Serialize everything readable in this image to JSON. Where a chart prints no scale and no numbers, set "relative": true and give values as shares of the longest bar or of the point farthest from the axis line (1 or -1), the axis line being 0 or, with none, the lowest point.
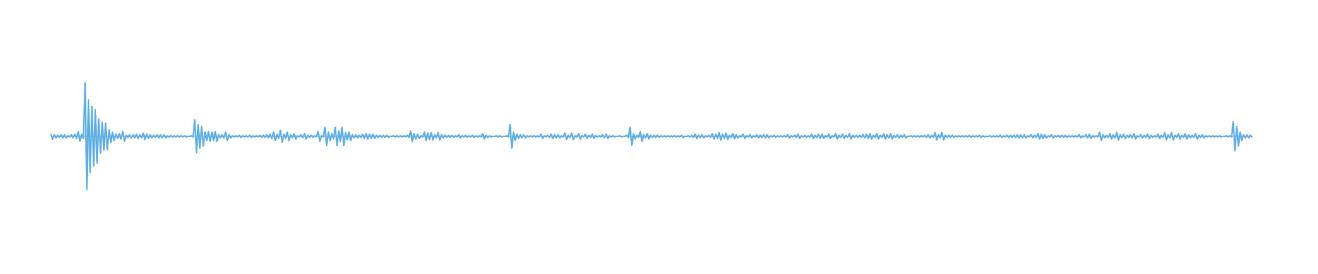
{
  "chart_data": {
    "type": "line",
    "relative": true,
    "categories": [
      null,
      null,
      null,
      null,
      null,
      null,
      null,
      null,
      null,
      null,
      null,
      null,
      null,
      null,
      null,
      null,
      null,
      null,
      null,
      null,
      null,
      null,
      null,
      null,
      null,
      null,
      null,
      null,
      null,
      null,
      null,
      null,
      null,
      null,
      null,
      null,
      null,
      null,
      null,
      null,
      null,
      null,
      null,
      null,
      null,
      null,
      null,
      null,
      null,
      null,
      null,
      null,
      null,
      null,
      null,
      null,
      null,
      null,
      null,
      null,
      null,
      null,
      null,
      null,
      null,
      null,
      null,
      null,
      null,
      null,
      null,
      null,
      null,
      null,
      null,
      null,
      null,
      null,
      null,
      null,
      null,
      null,
      null,
      null,
      null,
      null,
      null,
      null,
      null,
      null,
      null,
      null,
      null,
      null,
      null,
      null,
      null,
      null,
      null,
      null,
      null,
      null,
      null,
      null,
      null,
      null,
      null,
      null,
      null,
      null,
      null,
      null,
      null,
      null,
      null,
      null,
      null,
      null,
      null,
      null,
      null,
      null,
      null,
      null,
      null,
      null,
      null,
      null,
      null,
      null,
      null,
      null,
      null,
      null,
      null,
      null,
      null,
      null,
      null,
      null,
      null,
      null,
      null,
      null,
      null,
      null,
      null,
      null,
      null,
      null,
      null,
      null,
      null,
      null,
      null,
      null,
      null,
      null,
      null,
      null,
      null,
      null,
      null,
      null,
      null,
      null,
      null,
      null,
      null,
      null,
      null,
      null,
      null,
      null,
      null,
      null,
      null,
      null,
      null,
      null,
      null,
      null,
      null,
      null,
      null,
      null,
      null,
      null,
      null,
      null,
      null,
      null,
      null,
      null,
      null,
      null,
      null,
      null,
      null,
      null,
      null,
      null,
      null,
      null,
      null,
      null,
      null,
      null,
      null,
      null,
      null,
      null,
      null,
      null,
      null,
      null,
      null,
      null,
      null,
      null,
      null,
      null,
      null,
      null,
      null,
      null,
      null,
      null,
      null,
      null,
      null,
      null,
      null,
      null,
      null,
      null,
      null,
      null,
      null,
      null,
      null,
      null,
      null,
      null,
      null,
      null,
      null,
      null,
      null,
      null,
      null,
      null,
      null,
      null,
      null,
      null,
      null,
      null,
      null,
      null,
      null,
      null,
      null,
      null,
      null,
      null,
      null,
      null,
      null,
      null,
      null,
      null,
      null,
      null,
      null,
      null,
      null,
      null,
      null,
      null,
      null,
      null,
      null,
      null,
      null,
      null,
      null,
      null,
      null,
      null,
      null,
      null,
      null,
      null,
      null,
      null,
      null,
      null,
      null,
      null,
      null,
      null,
      null,
      null,
      null,
      null,
      null,
      null,
      null,
      null,
      null,
      null,
      null,
      null,
      null,
      null,
      null,
      null,
      null,
      null,
      null,
      null,
      null,
      null,
      null,
      null,
      null,
      null,
      null,
      null,
      null,
      null,
      null,
      null,
      null,
      null,
      null,
      null,
      null,
      null,
      null,
      null,
      null,
      null,
      null,
      null,
      null,
      null,
      null,
      null,
      null,
      null,
      null,
      null,
      null,
      null,
      null,
      null,
      null,
      null,
      null,
      null,
      null,
      null,
      null,
      null,
      null,
      null,
      null,
      null,
      null,
      null,
      null,
      null,
      null,
      null,
      null,
      null,
      null,
      null,
      null,
      null,
      null,
      null,
      null,
      null,
      null,
      null,
      null,
      null,
      null,
      null,
      null,
      null,
      null,
      null,
      null,
      null,
      null,
      null,
      null,
      null,
      null,
      null,
      null,
      null,
      null,
      null,
      null,
      null,
      null,
      null,
      null,
      null,
      null,
      null,
      null,
      null,
      null,
      null,
      null,
      null,
      null,
      null,
      null,
      null,
      null,
      null,
      null,
      null,
      null,
      null,
      null,
      null,
      null,
      null,
      null,
      null,
      null,
      null,
      null,
      null,
      null,
      null,
      null,
      null,
      null,
      null,
      null,
      null,
      null,
      null,
      null,
      null,
      null,
      null,
      null,
      null,
      null,
      null,
      null,
      null,
      null,
      null,
      null,
      null,
      null,
      null,
      null,
      null,
      null,
      null,
      null,
      null,
      null,
      null,
      null,
      null,
      null,
      null,
      null,
      null,
      null,
      null,
      null,
      null,
      null,
      null,
      null,
      null,
      null,
      null,
      null,
      null,
      null,
      null,
      null,
      null,
      null,
      null,
      null,
      null,
      null,
      null,
      null,
      null,
      null,
      null,
      null,
      null,
      null,
      null,
      null,
      null,
      null,
      null,
      null,
      null,
      null,
      null,
      null,
      null,
      null,
      null,
      null,
      null,
      null,
      null,
      null,
      null,
      null,
      null,
      null,
      null,
      null,
      null,
      null,
      null,
      null,
      null,
      null,
      null,
      null,
      null,
      null,
      null,
      null,
      null,
      null,
      null,
      null,
      null,
      null,
      null,
      null,
      null,
      null,
      null,
      null,
      null,
      null,
      null,
      null,
      null,
      null,
      null,
      null,
      null,
      null,
      null,
      null,
      null,
      null,
      null,
      null,
      null,
      null,
      null,
      null,
      null,
      null,
      null,
      null,
      null,
      null,
      null,
      null,
      null,
      null,
      null,
      null,
      null,
      null,
      null,
      null,
      null,
      null,
      null,
      null,
      null,
      null,
      null,
      null,
      null,
      null,
      null,
      null,
      null,
      null,
      null,
      null,
      null,
      null,
      null,
      null,
      null,
      null,
      null,
      null,
      null,
      null,
      null,
      null,
      null,
      null,
      null,
      null,
      null,
      null,
      null,
      null,
      null,
      null,
      null,
      null,
      null,
      null,
      null,
      null,
      null,
      null,
      null,
      null,
      null,
      null,
      null,
      null,
      null,
      null,
      null,
      null,
      null,
      null,
      null,
      null,
      null,
      null,
      null,
      null,
      null,
      null,
      null,
      null,
      null,
      null,
      null,
      null,
      null,
      null,
      null,
      null,
      null,
      null,
      null,
      null,
      null,
      null,
      null,
      null,
      null,
      null,
      null,
      null,
      null,
      null,
      null,
      null,
      null,
      null,
      null,
      null,
      null,
      null,
      null,
      null,
      null,
      null,
      null,
      null,
      null,
      null,
      null
    ],
    "series": [
      {
        "color": "#5dade2",
        "values": [
          0.05,
          -0.05,
          0.03,
          -0.03,
          0.02,
          -0.02,
          0.03,
          -0.03,
          0.03,
          -0.03,
          0.01,
          -0.01,
          0.03,
          -0.03,
          0.04,
          -0.04,
          0.09,
          -0.09,
          0.04,
          -0.04,
          1.0,
          -1.0,
          0.68,
          -0.68,
          0.56,
          -0.56,
          0.5,
          -0.5,
          0.32,
          -0.32,
          0.26,
          -0.26,
          0.25,
          -0.25,
          0.12,
          -0.12,
          0.08,
          -0.08,
          0.04,
          -0.04,
          0.05,
          -0.05,
          0.09,
          -0.09,
          0.02,
          -0.02,
          0.03,
          -0.03,
          0.03,
          -0.03,
          0.04,
          -0.04,
          0.03,
          -0.03,
          0.06,
          -0.06,
          0.04,
          -0.04,
          0.03,
          -0.03,
          0.02,
          -0.02,
          0.03,
          -0.03,
          0.03,
          -0.03,
          0.03,
          -0.03,
          0.01,
          -0.01,
          0.01,
          -0.01,
          0.01,
          -0.01,
          0.01,
          -0.01,
          0.01,
          -0.01,
          0.01,
          -0.01,
          0,
          0,
          0.01,
          -0.01,
          0.31,
          -0.31,
          0.22,
          -0.22,
          0.18,
          -0.18,
          0.08,
          -0.08,
          0.09,
          -0.09,
          0.08,
          -0.08,
          0.09,
          -0.09,
          0.03,
          -0.03,
          0.03,
          -0.03,
          0.08,
          -0.08,
          0.03,
          -0.03,
          0.01,
          -0.01,
          0.01,
          -0.01,
          0.02,
          -0.02,
          0.01,
          -0.01,
          0.01,
          -0.01,
          0.02,
          -0.02,
          0.01,
          -0.01,
          0.01,
          -0.01,
          0.02,
          -0.02,
          0.02,
          -0.02,
          0.03,
          -0.03,
          0.04,
          -0.04,
          0.08,
          -0.08,
          0.04,
          -0.04,
          0.11,
          -0.11,
          0.04,
          -0.04,
          0.08,
          -0.08,
          0.03,
          -0.03,
          0.05,
          -0.05,
          0.01,
          -0.01,
          0.03,
          -0.03,
          0.05,
          -0.05,
          0.02,
          -0.02,
          0.02,
          -0.02,
          0.01,
          -0.01,
          0.09,
          -0.09,
          0.01,
          -0.01,
          0.17,
          -0.17,
          0.08,
          -0.08,
          0.05,
          -0.05,
          0.17,
          -0.17,
          0.1,
          -0.1,
          0.17,
          -0.17,
          0.07,
          -0.07,
          0.08,
          -0.08,
          0.03,
          -0.03,
          0.03,
          -0.03,
          0.02,
          -0.02,
          0.04,
          -0.04,
          0.05,
          -0.05,
          0.04,
          -0.04,
          0.04,
          -0.04,
          0.02,
          -0.02,
          0.02,
          -0.02,
          0.02,
          -0.02,
          0.02,
          -0.02,
          0,
          0,
          0.01,
          -0.01,
          0.01,
          -0.01,
          0.01,
          -0.01,
          0.01,
          -0.01,
          0.02,
          -0.02,
          0.1,
          -0.1,
          0.05,
          -0.05,
          0.04,
          -0.04,
          0.01,
          -0.01,
          0.08,
          -0.08,
          0.06,
          -0.06,
          0.07,
          -0.07,
          0.03,
          -0.03,
          0.07,
          -0.07,
          0.03,
          -0.03,
          0.02,
          -0.02,
          0.02,
          -0.02,
          0.02,
          -0.02,
          0.01,
          -0.01,
          0.03,
          -0.03,
          0.01,
          -0.01,
          0.02,
          -0.02,
          0.01,
          -0.01,
          0.02,
          -0.02,
          0.01,
          -0.01,
          0.01,
          -0.01,
          0.05,
          -0.05,
          0.02,
          -0.02,
          0.01,
          -0.01,
          0,
          0,
          0.01,
          -0.01,
          0.01,
          -0.01,
          0,
          0,
          0.01,
          -0.01,
          0.22,
          -0.22,
          0.08,
          -0.08,
          0.04,
          -0.04,
          0.03,
          -0.03,
          0.03,
          -0.03,
          0.01,
          -0.01,
          0.01,
          -0.01,
          0.01,
          -0.01,
          0.01,
          -0.01,
          0.04,
          -0.04,
          0.01,
          -0.01,
          0.02,
          -0.02,
          0.04,
          -0.04,
          0.03,
          -0.03,
          0.03,
          -0.03,
          0.01,
          -0.01,
          0.06,
          -0.06,
          0.02,
          -0.02,
          0.06,
          -0.06,
          0.01,
          -0.01,
          0.05,
          -0.05,
          0.01,
          -0.01,
          0.04,
          -0.04,
          0.02,
          -0.02,
          0.04,
          -0.04,
          0.01,
          -0.01,
          0.01,
          -0.01,
          0.03,
          -0.03,
          0.04,
          -0.04,
          0.01,
          -0.01,
          0.01,
          -0.01,
          0,
          0,
          0.01,
          -0.01,
          0,
          0,
          0.02,
          -0.02,
          0.17,
          -0.17,
          0.05,
          -0.05,
          0.02,
          -0.02,
          0.09,
          -0.09,
          0.03,
          -0.03,
          0.05,
          -0.05,
          0.02,
          -0.02,
          0.02,
          -0.02,
          0.02,
          -0.02,
          0.01,
          -0.01,
          0.01,
          -0.01,
          0.01,
          -0.01,
          0.01,
          -0.01,
          0.01,
          -0.01,
          0.01,
          -0.01,
          0.02,
          -0.02,
          0,
          0,
          0.01,
          -0.01,
          0.02,
          -0.02,
          0.04,
          -0.04,
          0.02,
          -0.02,
          0.03,
          -0.03,
          0.01,
          -0.01,
          0.02,
          -0.02,
          0.05,
          -0.05,
          0.04,
          -0.04,
          0.07,
          -0.07,
          0.04,
          -0.04,
          0.06,
          -0.06,
          0.02,
          -0.02,
          0.05,
          -0.05,
          0.03,
          -0.03,
          0.01,
          -0.01,
          0.04,
          -0.04,
          0.01,
          -0.01,
          0.03,
          -0.03,
          0.01,
          -0.01,
          0.03,
          -0.03,
          0.02,
          -0.02,
          0.03,
          -0.03,
          0.03,
          -0.03,
          0.01,
          -0.01,
          0.02,
          -0.02,
          0.01,
          -0.01,
          0.01,
          -0.01,
          0.01,
          -0.01,
          0.03,
          -0.03,
          0.01,
          -0.01,
          0.02,
          -0.02,
          0.04,
          -0.04,
          0.01,
          -0.01,
          0.02,
          -0.02,
          0.01,
          -0.01,
          0.04,
          -0.04,
          0.02,
          -0.02,
          0.04,
          -0.04,
          0.04,
          -0.04,
          0.01,
          -0.01,
          0.04,
          -0.04,
          0.01,
          -0.01,
          0.05,
          -0.05,
          0.02,
          -0.02,
          0.04,
          -0.04,
          0.02,
          -0.02,
          0.05,
          -0.05,
          0.02,
          -0.02,
          0.02,
          -0.02,
          0.02,
          -0.02,
          0.03,
          -0.03,
          0.04,
          -0.04,
          0.05,
          -0.05,
          0.02,
          -0.02,
          0.05,
          -0.05,
          0.02,
          -0.02,
          0.05,
          -0.05,
          0.03,
          -0.03,
          0.05,
          -0.05,
          0.02,
          -0.02,
          0.03,
          -0.03,
          0.02,
          -0.02,
          0.03,
          -0.03,
          0,
          0,
          0.01,
          -0.01,
          0.01,
          -0.01,
          0.01,
          -0.01,
          0.01,
          -0.01,
          0.02,
          -0.02,
          0.03,
          -0.03,
          0.02,
          -0.02,
          0.07,
          -0.07,
          0.03,
          -0.03,
          0.07,
          -0.07,
          0.02,
          -0.02,
          0.02,
          -0.02,
          0.02,
          -0.02,
          0.01,
          -0.01,
          0.01,
          -0.01,
          0.01,
          -0.01,
          0.01,
          -0.01,
          0.02,
          -0.02,
          0.01,
          -0.01,
          0.01,
          -0.01,
          0.02,
          -0.02,
          0.01,
          -0.01,
          0,
          0,
          0.01,
          -0.01,
          0.01,
          -0.01,
          0.01,
          -0.01,
          0.02,
          -0.02,
          0.01,
          -0.01,
          0.02,
          -0.02,
          0.02,
          -0.02,
          0.02,
          -0.02,
          0.03,
          -0.03,
          0.03,
          -0.03,
          0.03,
          -0.03,
          0.01,
          -0.01,
          0.03,
          -0.03,
          0.02,
          -0.02,
          0.05,
          -0.05,
          0.04,
          -0.04,
          0.03,
          -0.03,
          0.01,
          -0.01,
          0.03,
          -0.03,
          0.01,
          -0.01,
          0.02,
          -0.02,
          0.02,
          -0.02,
          0.02,
          -0.02,
          0.01,
          -0.01,
          0.01,
          -0.01,
          0.01,
          -0.01,
          0.03,
          -0.03,
          0.01,
          -0.01,
          0.03,
          -0.03,
          0.04,
          -0.04,
          0.01,
          -0.01,
          0.01,
          -0.01,
          0.08,
          -0.08,
          0.03,
          -0.03,
          0.02,
          -0.02,
          0.05,
          -0.05,
          0.03,
          -0.03,
          0.07,
          -0.07,
          0.03,
          -0.03,
          0.04,
          -0.04,
          0.02,
          -0.02,
          0.03,
          -0.03,
          0.05,
          -0.05,
          0.01,
          -0.01,
          0.03,
          -0.03,
          0.02,
          -0.02,
          0.04,
          -0.04,
          0.02,
          -0.02,
          0.01,
          -0.01,
          0.04,
          -0.04,
          0.02,
          -0.02,
          0.07,
          -0.07,
          0.03,
          -0.03,
          0.07,
          -0.07,
          0.02,
          -0.02,
          0.05,
          -0.05,
          0.02,
          -0.02,
          0.05,
          -0.05,
          0.03,
          -0.03,
          0.02,
          -0.02,
          0.05,
          -0.05,
          0.02,
          -0.02,
          0.03,
          -0.03,
          0.01,
          -0.01,
          0.01,
          -0.01,
          0.01,
          -0.01,
          0.01,
          -0.01,
          0.01,
          -0.01,
          0,
          0,
          0.01,
          -0.01,
          0.01,
          -0.01,
          0.27,
          -0.27,
          0.18,
          -0.18,
          0.08,
          -0.08,
          0.03,
          -0.03,
          0.03,
          -0.03,
          0.02,
          -0.02
        ]
      }
    ],
    "ref_lines": [
      {
        "axis": "y",
        "value": 0,
        "color": "#5dade2"
      }
    ]
  }
}
